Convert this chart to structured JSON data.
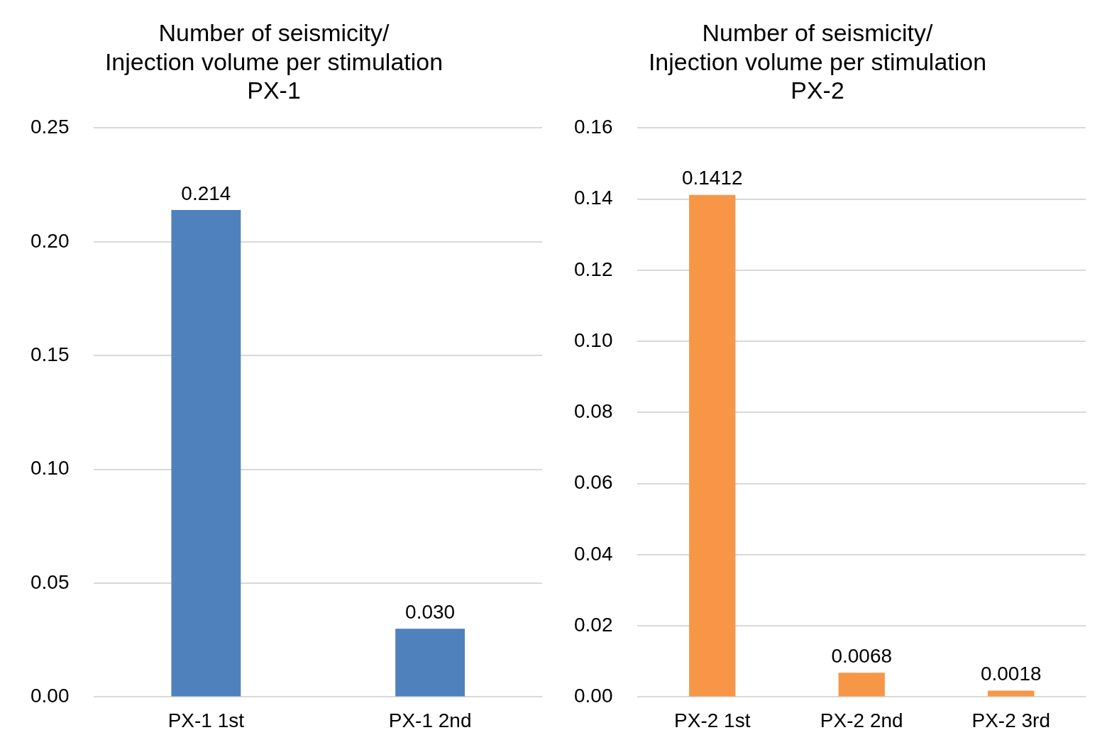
{
  "chart_data": [
    {
      "type": "bar",
      "title": "Number of seismicity/\nInjection volume per stimulation\nPX-1",
      "categories": [
        "PX-1 1st",
        "PX-1 2nd"
      ],
      "values": [
        0.214,
        0.03
      ],
      "value_labels": [
        "0.214",
        "0.030"
      ],
      "color": "#4f81bd",
      "ylim": [
        0,
        0.25
      ],
      "yticks": [
        {
          "value": 0,
          "label": "0.00"
        },
        {
          "value": 0.05,
          "label": "0.05"
        },
        {
          "value": 0.1,
          "label": "0.10"
        },
        {
          "value": 0.15,
          "label": "0.15"
        },
        {
          "value": 0.2,
          "label": "0.20"
        },
        {
          "value": 0.25,
          "label": "0.25"
        }
      ],
      "grid": "y",
      "legend": false
    },
    {
      "type": "bar",
      "title": "Number of seismicity/\nInjection volume per stimulation\nPX-2",
      "categories": [
        "PX-2 1st",
        "PX-2 2nd",
        "PX-2 3rd"
      ],
      "values": [
        0.1412,
        0.0068,
        0.0018
      ],
      "data_labels": true,
      "color": "#f79646",
      "ylim": [
        0,
        0.16
      ],
      "yticks": [
        {
          "value": 0,
          "label": "0.00"
        },
        {
          "value": 0.02,
          "label": "0.02"
        },
        {
          "value": 0.04,
          "label": "0.04"
        },
        {
          "value": 0.06,
          "label": "0.06"
        },
        {
          "value": 0.08,
          "label": "0.08"
        },
        {
          "value": 0.1,
          "label": "0.10"
        },
        {
          "value": 0.12,
          "label": "0.12"
        },
        {
          "value": 0.14,
          "label": "0.14"
        },
        {
          "value": 0.16,
          "label": "0.16"
        }
      ],
      "grid": "y",
      "legend": false
    }
  ]
}
